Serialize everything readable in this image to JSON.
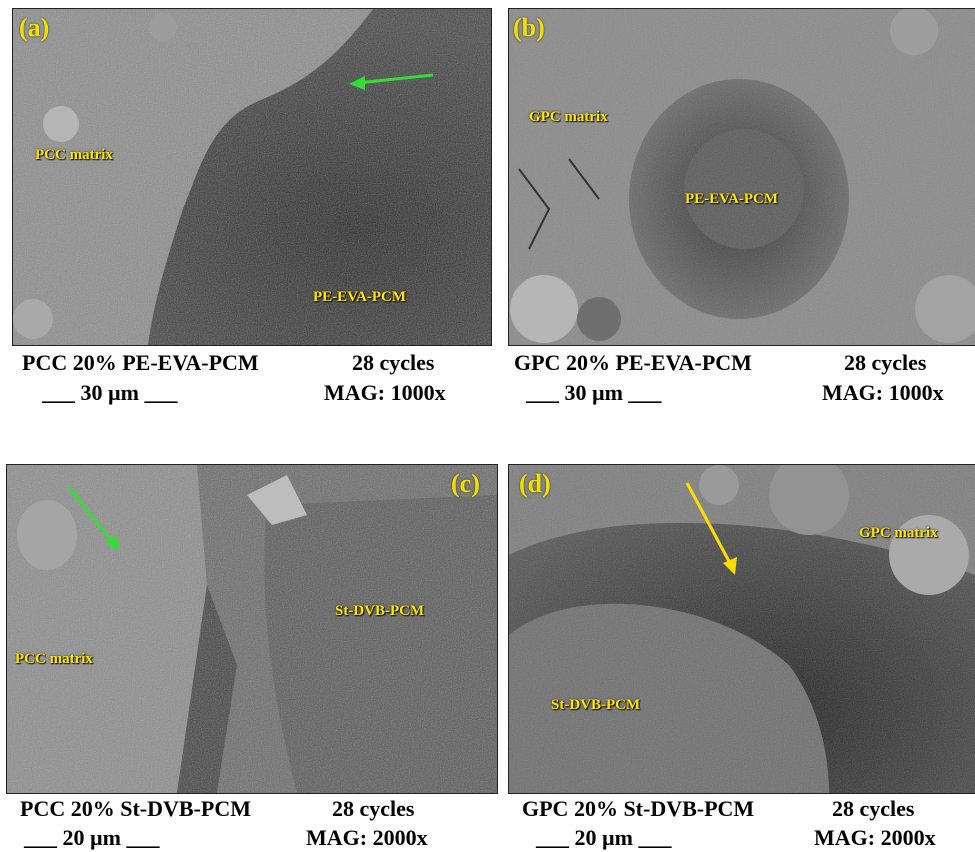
{
  "panels": [
    {
      "label": "(a)",
      "regions": [
        "PCC matrix",
        "PE-EVA-PCM"
      ],
      "caption": "PCC 20% PE-EVA-PCM",
      "cycles": "28 cycles",
      "scale": "___ 30  µm ___",
      "mag": "MAG: 1000x",
      "arrow_color": "#33dd33"
    },
    {
      "label": "(b)",
      "regions": [
        "GPC matrix",
        "PE-EVA-PCM"
      ],
      "caption": "GPC 20% PE-EVA-PCM",
      "cycles": "28 cycles",
      "scale": "___ 30  µm ___",
      "mag": "MAG: 1000x"
    },
    {
      "label": "(c)",
      "regions": [
        "PCC matrix",
        "St-DVB-PCM"
      ],
      "caption": "PCC 20% St-DVB-PCM",
      "cycles": "28 cycles",
      "scale": "___ 20 µm ___",
      "mag": "MAG: 2000x",
      "arrow_color": "#33dd33"
    },
    {
      "label": "(d)",
      "regions": [
        "GPC matrix",
        "St-DVB-PCM"
      ],
      "caption": "GPC 20% St-DVB-PCM",
      "cycles": "28 cycles",
      "scale": "___ 20 µm ___",
      "mag": "MAG: 2000x",
      "arrow_color": "#ffdd00"
    }
  ]
}
